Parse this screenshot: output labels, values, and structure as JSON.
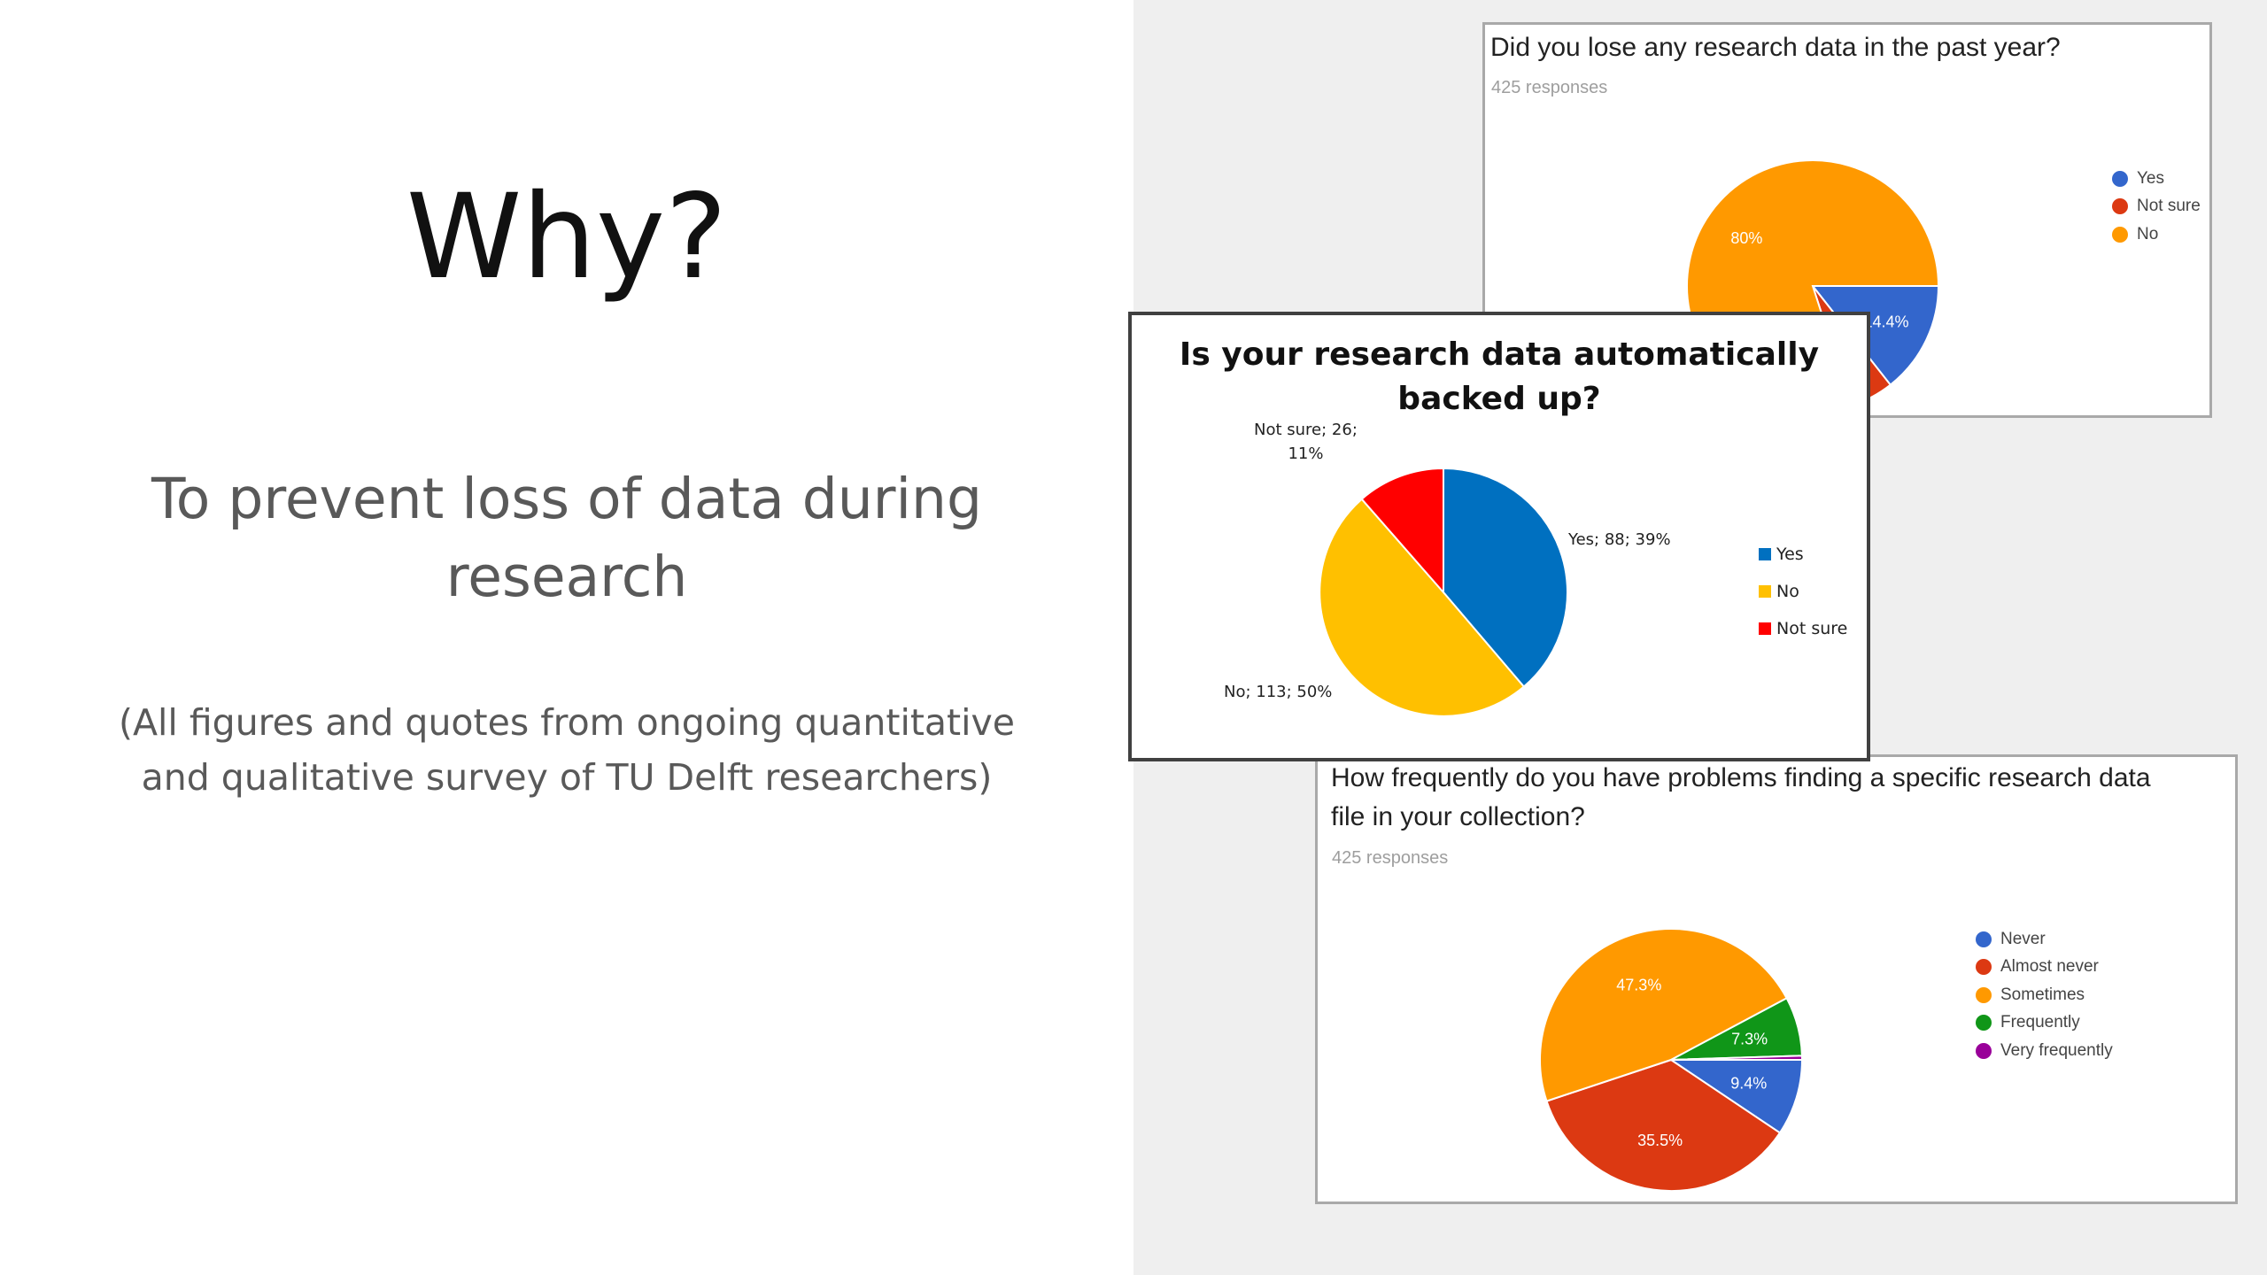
{
  "slide": {
    "title": "Why?",
    "subtitle_lines": [
      "To prevent loss of data during",
      "research"
    ],
    "note_lines": [
      "(All figures and quotes from ongoing quantitative",
      "and qualitative survey of TU Delft researchers)"
    ]
  },
  "chart_data": [
    {
      "type": "pie",
      "title": "Did you lose any research data in the past year?",
      "subtitle": "425 responses",
      "categories": [
        "Yes",
        "Not sure",
        "No"
      ],
      "values": [
        14.4,
        5.6,
        80.0
      ],
      "data_labels": [
        "14.4%",
        "",
        "80%"
      ],
      "colors": [
        "#3366cc",
        "#dc3912",
        "#ff9900"
      ],
      "legend_position": "right"
    },
    {
      "type": "pie",
      "title": "Is your research data automatically backed up?",
      "categories": [
        "Yes",
        "No",
        "Not sure"
      ],
      "values": [
        88,
        113,
        26
      ],
      "percentages": [
        39,
        50,
        11
      ],
      "data_labels": [
        "Yes; 88; 39%",
        "No; 113; 50%",
        "Not sure; 26; 11%"
      ],
      "colors": [
        "#0070c0",
        "#ffc000",
        "#ff0000"
      ],
      "legend_position": "right"
    },
    {
      "type": "pie",
      "title": "How frequently do you have problems finding a specific research data file in your collection?",
      "subtitle": "425 responses",
      "categories": [
        "Never",
        "Almost never",
        "Sometimes",
        "Frequently",
        "Very frequently"
      ],
      "values": [
        9.4,
        35.5,
        47.3,
        7.3,
        0.5
      ],
      "data_labels": [
        "9.4%",
        "35.5%",
        "47.3%",
        "7.3%",
        ""
      ],
      "colors": [
        "#3366cc",
        "#dc3912",
        "#ff9900",
        "#109618",
        "#990099"
      ],
      "legend_position": "right"
    }
  ],
  "card_a": {
    "title_lines": [
      "Did you lose any research data in the past year?"
    ],
    "responses": "425 responses",
    "legend": [
      "Yes",
      "Not sure",
      "No"
    ]
  },
  "card_b": {
    "title_lines": [
      "Is your research data automatically",
      "backed up?"
    ],
    "label_yes": [
      "Yes; 88; 39%"
    ],
    "label_no": [
      "No; 113; 50%"
    ],
    "label_notsure": [
      "Not sure; 26;",
      "11%"
    ],
    "legend": [
      "Yes",
      "No",
      "Not sure"
    ]
  },
  "card_c": {
    "title_lines": [
      "How frequently do you have problems finding a specific research data",
      "file in your collection?"
    ],
    "responses": "425 responses",
    "legend": [
      "Never",
      "Almost never",
      "Sometimes",
      "Frequently",
      "Very frequently"
    ]
  }
}
